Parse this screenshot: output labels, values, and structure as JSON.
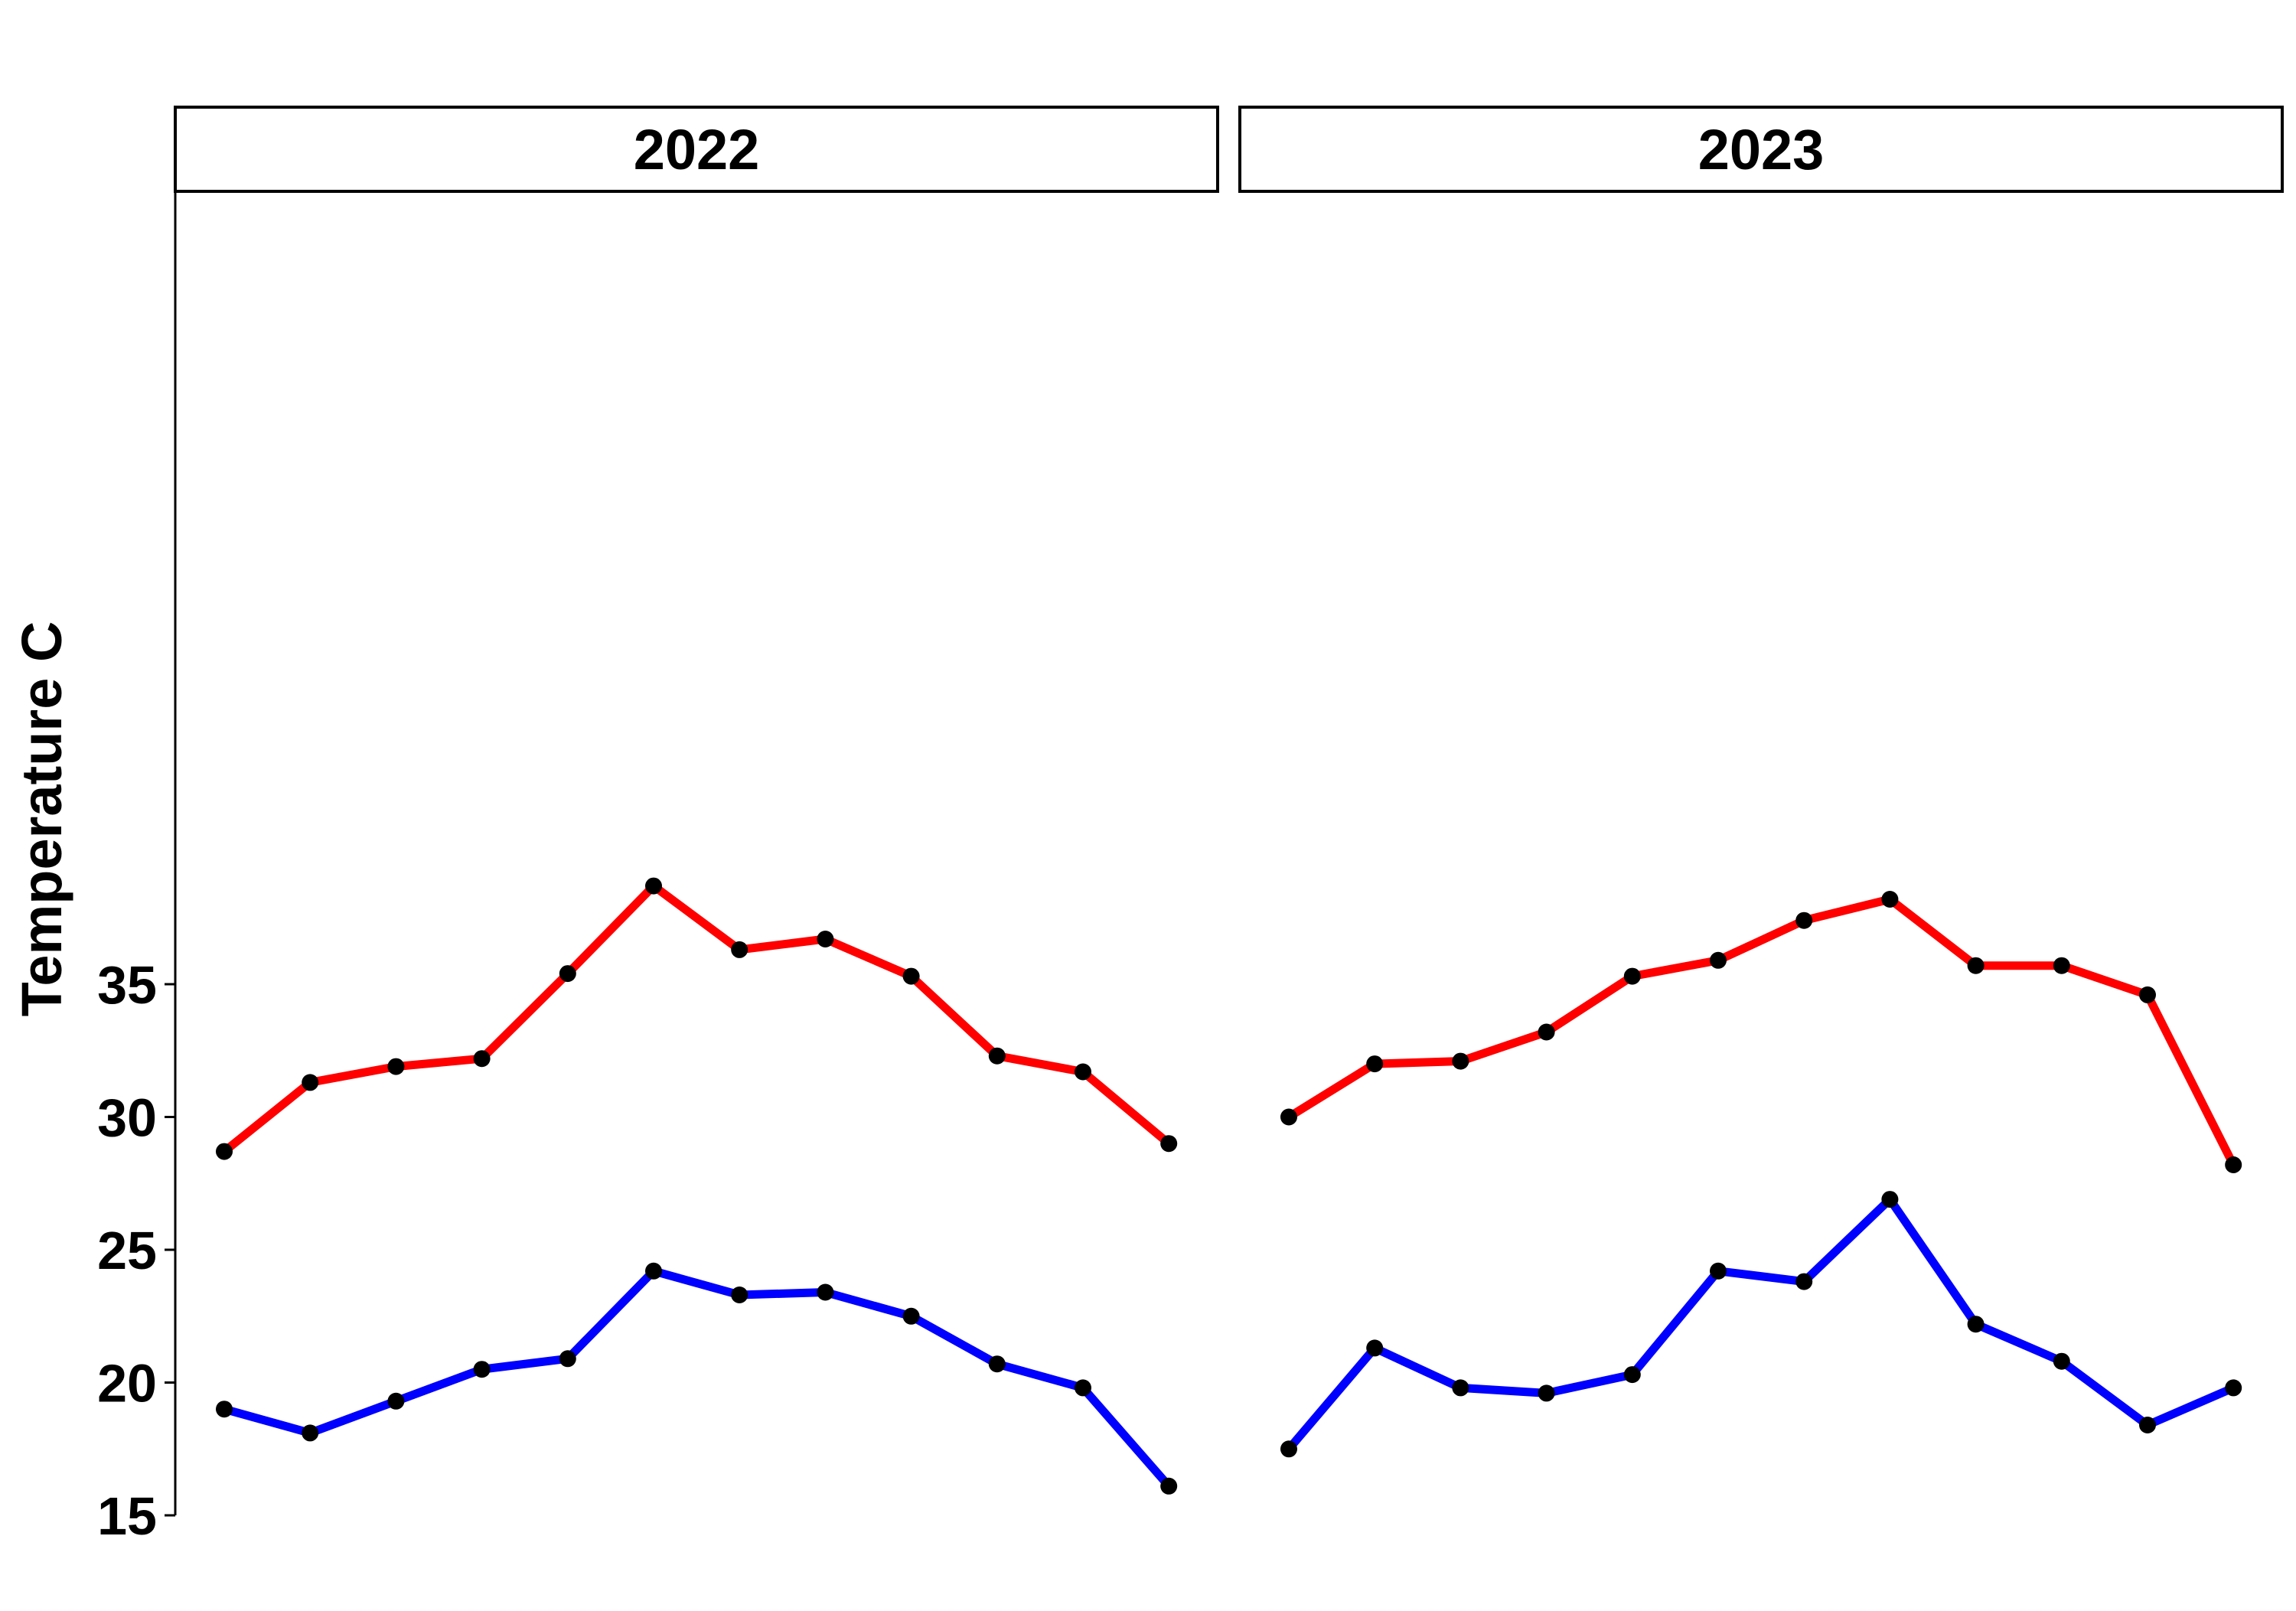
{
  "chart_data": {
    "type": "line",
    "ylabel": "Temperature C",
    "ylim": [
      15,
      39.5
    ],
    "yticks": [
      15,
      20,
      25,
      30,
      35
    ],
    "grid": false,
    "x_axis_shown": false,
    "colors": {
      "max": "#ff0000",
      "min": "#0000ff",
      "points": "#000000"
    },
    "panels": [
      {
        "label": "2022",
        "x": [
          1,
          2,
          3,
          4,
          5,
          6,
          7,
          8,
          9,
          10,
          11,
          12
        ],
        "series": [
          {
            "color": "#ff0000",
            "values": [
              28.7,
              31.3,
              31.9,
              32.2,
              35.4,
              38.7,
              36.3,
              36.7,
              35.3,
              32.3,
              31.7,
              29.0
            ]
          },
          {
            "color": "#0000ff",
            "values": [
              19.0,
              18.1,
              19.3,
              20.5,
              20.9,
              24.2,
              23.3,
              23.4,
              22.5,
              20.7,
              19.8,
              16.1
            ]
          }
        ]
      },
      {
        "label": "2023",
        "x": [
          1,
          2,
          3,
          4,
          5,
          6,
          7,
          8,
          9,
          10,
          11,
          12
        ],
        "series": [
          {
            "color": "#ff0000",
            "values": [
              30.0,
              32.0,
              32.1,
              33.2,
              35.3,
              35.9,
              37.4,
              38.2,
              35.7,
              35.7,
              34.6,
              28.2
            ]
          },
          {
            "color": "#0000ff",
            "values": [
              17.5,
              21.3,
              19.8,
              19.6,
              20.3,
              24.2,
              23.8,
              26.9,
              22.2,
              20.8,
              18.4,
              19.8
            ]
          }
        ]
      }
    ]
  }
}
